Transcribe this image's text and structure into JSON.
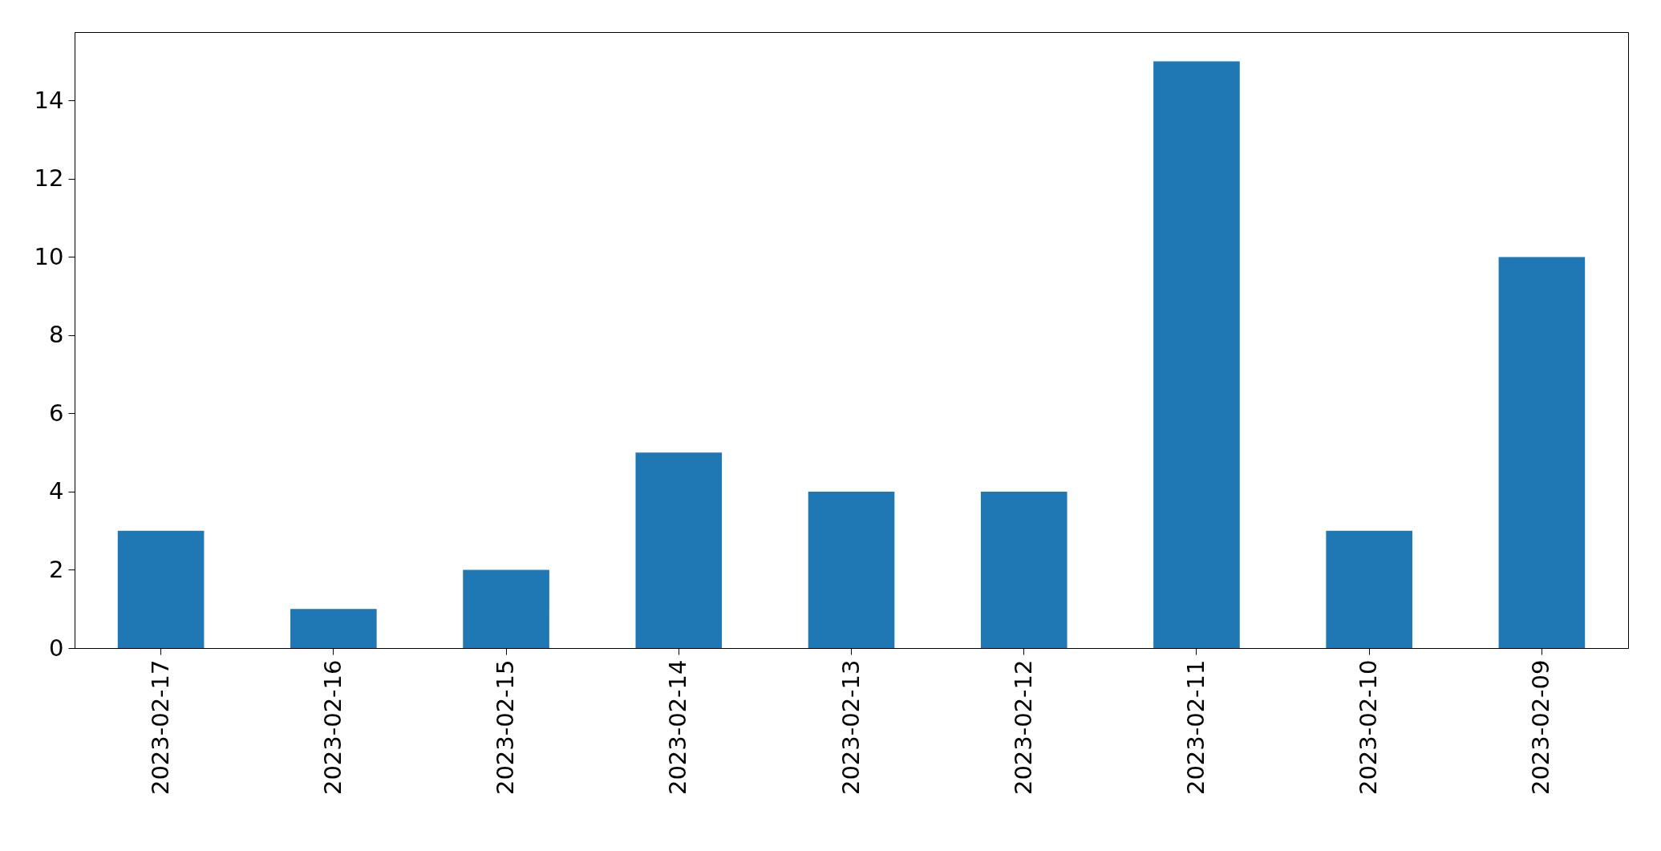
{
  "chart_data": {
    "type": "bar",
    "categories": [
      "2023-02-17",
      "2023-02-16",
      "2023-02-15",
      "2023-02-14",
      "2023-02-13",
      "2023-02-12",
      "2023-02-11",
      "2023-02-10",
      "2023-02-09"
    ],
    "values": [
      3,
      1,
      2,
      5,
      4,
      4,
      15,
      3,
      10
    ],
    "color": "#1f77b4",
    "ylim": [
      0,
      15.75
    ],
    "yticks": [
      0,
      2,
      4,
      6,
      8,
      10,
      12,
      14
    ],
    "grid": false
  }
}
